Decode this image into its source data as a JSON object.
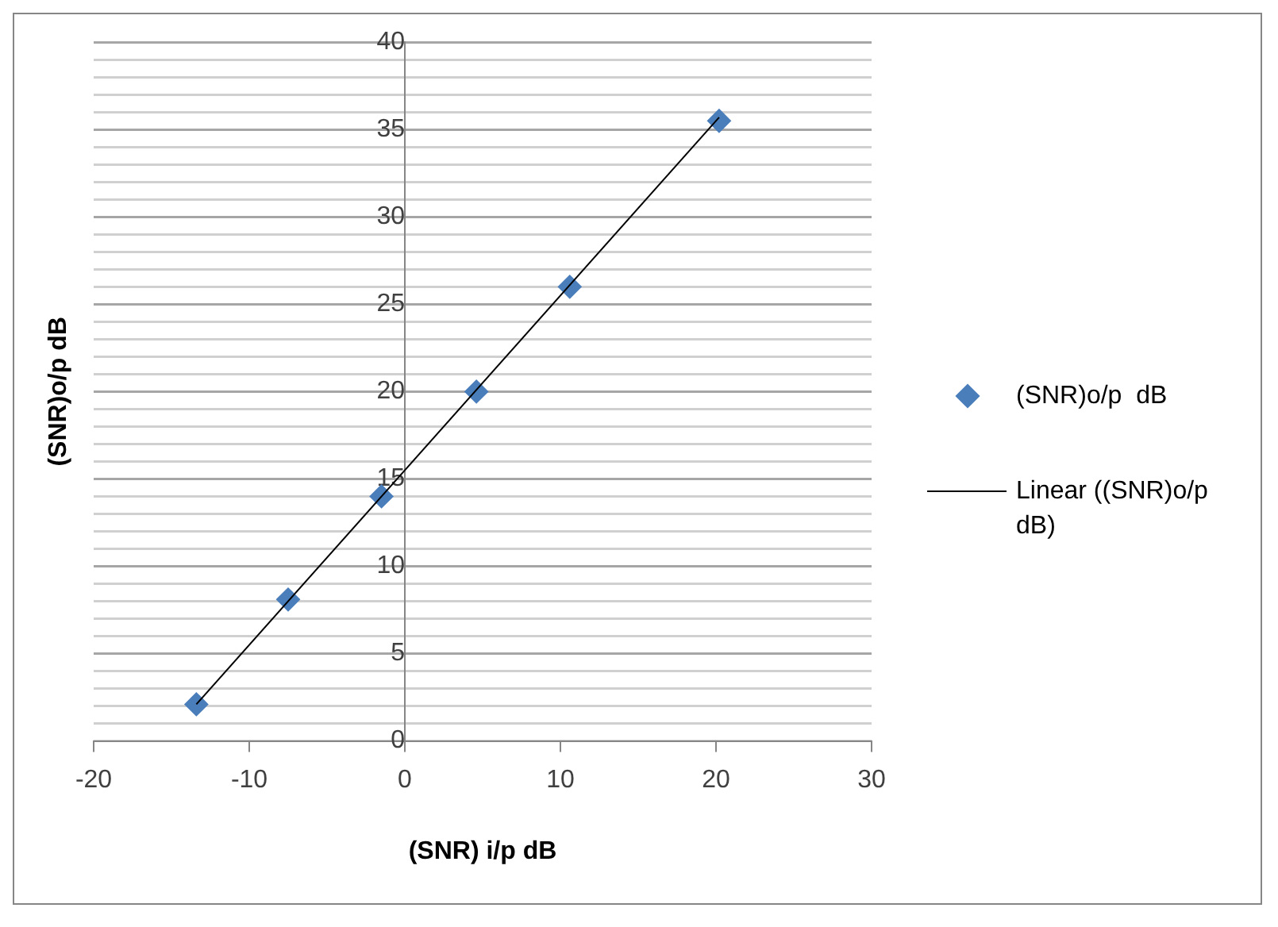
{
  "chart_data": {
    "type": "scatter",
    "xlabel": "(SNR) i/p dB",
    "ylabel": "(SNR)o/p dB",
    "xlim": [
      -20,
      30
    ],
    "xticks": [
      -20,
      -10,
      0,
      10,
      20,
      30
    ],
    "ylim": [
      0,
      40
    ],
    "yticks": [
      0,
      {
        "value": 1,
        "label": null
      },
      {
        "value": 2,
        "label": null
      },
      {
        "value": 3,
        "label": null
      },
      {
        "value": 4,
        "label": null
      },
      5,
      {
        "value": 6,
        "label": null
      },
      {
        "value": 7,
        "label": null
      },
      {
        "value": 8,
        "label": null
      },
      {
        "value": 9,
        "label": null
      },
      10,
      {
        "value": 11,
        "label": null
      },
      {
        "value": 12,
        "label": null
      },
      {
        "value": 13,
        "label": null
      },
      {
        "value": 14,
        "label": null
      },
      15,
      {
        "value": 16,
        "label": null
      },
      {
        "value": 17,
        "label": null
      },
      {
        "value": 18,
        "label": null
      },
      {
        "value": 19,
        "label": null
      },
      20,
      {
        "value": 21,
        "label": null
      },
      {
        "value": 22,
        "label": null
      },
      {
        "value": 23,
        "label": null
      },
      {
        "value": 24,
        "label": null
      },
      25,
      {
        "value": 26,
        "label": null
      },
      {
        "value": 27,
        "label": null
      },
      {
        "value": 28,
        "label": null
      },
      {
        "value": 29,
        "label": null
      },
      30,
      {
        "value": 31,
        "label": null
      },
      {
        "value": 32,
        "label": null
      },
      {
        "value": 33,
        "label": null
      },
      {
        "value": 34,
        "label": null
      },
      35,
      {
        "value": 36,
        "label": null
      },
      {
        "value": 37,
        "label": null
      },
      {
        "value": 38,
        "label": null
      },
      {
        "value": 39,
        "label": null
      },
      40
    ],
    "grid": "y",
    "legend": "right",
    "marker": "diamond",
    "series": [
      {
        "name": "(SNR)o/p  dB",
        "type": "scatter",
        "color": "#4a7ebb",
        "x": [
          -13.4,
          -7.5,
          -1.5,
          4.6,
          10.6,
          20.2
        ],
        "values": [
          2.1,
          8.1,
          14,
          20,
          26,
          35.5
        ]
      },
      {
        "name": "Linear ((SNR)o/p dB)",
        "type": "line",
        "color": "#000000",
        "marker": "none",
        "line_style": "solid",
        "x": [
          -13.4,
          20.2
        ],
        "values": [
          2.1,
          35.7
        ]
      }
    ]
  }
}
